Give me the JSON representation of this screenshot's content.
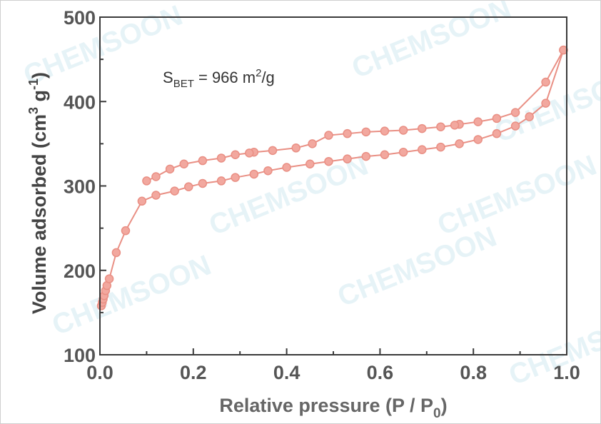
{
  "chart_data": {
    "type": "line",
    "title": "",
    "xlabel": "Relative pressure (P / P",
    "xlabel_sub": "0",
    "xlabel_tail": ")",
    "ylabel": "Volume adsorbed (cm",
    "ylabel_sup1": "3",
    "ylabel_mid": " g",
    "ylabel_sup2": "-1",
    "ylabel_tail": ")",
    "xlim": [
      0,
      1.0
    ],
    "ylim": [
      100,
      500
    ],
    "xticks": [
      "0.0",
      "0.2",
      "0.4",
      "0.6",
      "0.8",
      "1.0"
    ],
    "xtick_values": [
      0,
      0.2,
      0.4,
      0.6,
      0.8,
      1.0
    ],
    "yticks": [
      "100",
      "200",
      "300",
      "400",
      "500"
    ],
    "ytick_values": [
      100,
      200,
      300,
      400,
      500
    ],
    "grid": false,
    "legend": "none",
    "annotation": {
      "s": "S",
      "sub": "BET",
      "eq": " = 966 m",
      "sup": "2",
      "tail": "/g"
    },
    "watermark": "CHEMSOON",
    "series_color": "#e98f84",
    "marker_fill": "#f2a89f",
    "series": [
      {
        "x": [
          0.003,
          0.005,
          0.007,
          0.009,
          0.012,
          0.015,
          0.02,
          0.035,
          0.055,
          0.09,
          0.12,
          0.16,
          0.19,
          0.22,
          0.26,
          0.29,
          0.33,
          0.36,
          0.4,
          0.45,
          0.49,
          0.53,
          0.57,
          0.61,
          0.65,
          0.69,
          0.73,
          0.77,
          0.81,
          0.85,
          0.89,
          0.92,
          0.955,
          0.993
        ],
        "y": [
          158,
          162,
          166,
          170,
          176,
          182,
          190,
          221,
          247,
          282,
          289,
          294,
          299,
          303,
          306,
          310,
          314,
          318,
          322,
          326,
          329,
          332,
          335,
          337,
          340,
          343,
          346,
          350,
          355,
          362,
          371,
          382,
          398,
          461
        ]
      },
      {
        "x": [
          0.993,
          0.955,
          0.89,
          0.85,
          0.81,
          0.77,
          0.76,
          0.73,
          0.69,
          0.65,
          0.61,
          0.57,
          0.53,
          0.49,
          0.455,
          0.42,
          0.37,
          0.33,
          0.32,
          0.29,
          0.26,
          0.22,
          0.18,
          0.15,
          0.12,
          0.1
        ],
        "y": [
          461,
          423,
          387,
          380,
          376,
          373,
          372,
          370,
          368,
          366,
          365,
          364,
          362,
          360,
          350,
          345,
          342,
          340,
          339,
          337,
          333,
          330,
          326,
          320,
          311,
          306
        ]
      }
    ]
  }
}
